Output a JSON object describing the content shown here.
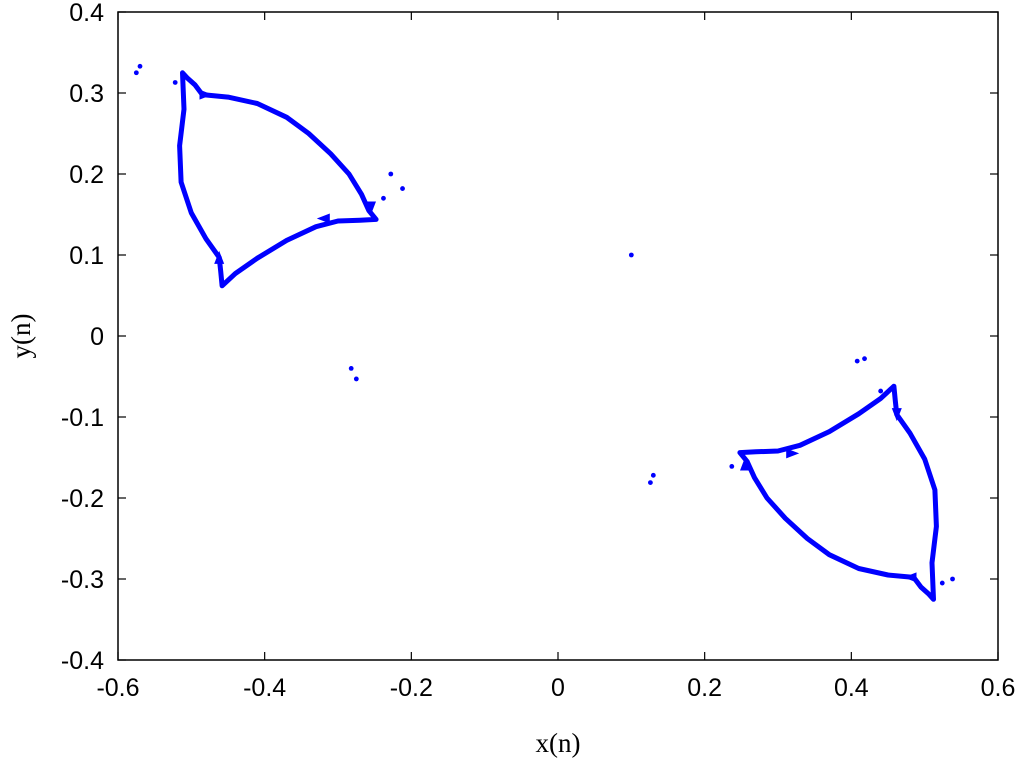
{
  "chart_data": {
    "type": "scatter",
    "xlabel": "x(n)",
    "ylabel": "y(n)",
    "xlim": [
      -0.6,
      0.6
    ],
    "ylim": [
      -0.4,
      0.4
    ],
    "x_ticks": [
      -0.6,
      -0.4,
      -0.2,
      0,
      0.2,
      0.4,
      0.6
    ],
    "y_ticks": [
      -0.4,
      -0.3,
      -0.2,
      -0.1,
      0,
      0.1,
      0.2,
      0.3,
      0.4
    ],
    "x_tick_labels": [
      "-0.6",
      "-0.4",
      "-0.2",
      "0",
      "0.2",
      "0.4",
      "0.6"
    ],
    "y_tick_labels": [
      "-0.4",
      "-0.3",
      "-0.2",
      "-0.1",
      "0",
      "0.1",
      "0.2",
      "0.3",
      "0.4"
    ],
    "grid": false,
    "series_color": "#0000ff",
    "attractor_upper_left": [
      [
        -0.512,
        0.325
      ],
      [
        -0.505,
        0.318
      ],
      [
        -0.495,
        0.31
      ],
      [
        -0.485,
        0.298
      ],
      [
        -0.45,
        0.295
      ],
      [
        -0.41,
        0.287
      ],
      [
        -0.37,
        0.27
      ],
      [
        -0.34,
        0.25
      ],
      [
        -0.31,
        0.225
      ],
      [
        -0.285,
        0.2
      ],
      [
        -0.268,
        0.175
      ],
      [
        -0.258,
        0.155
      ],
      [
        -0.248,
        0.144
      ],
      [
        -0.27,
        0.143
      ],
      [
        -0.3,
        0.142
      ],
      [
        -0.33,
        0.135
      ],
      [
        -0.37,
        0.118
      ],
      [
        -0.41,
        0.096
      ],
      [
        -0.44,
        0.077
      ],
      [
        -0.458,
        0.062
      ],
      [
        -0.46,
        0.08
      ],
      [
        -0.462,
        0.097
      ],
      [
        -0.48,
        0.12
      ],
      [
        -0.5,
        0.152
      ],
      [
        -0.514,
        0.19
      ],
      [
        -0.516,
        0.235
      ],
      [
        -0.51,
        0.28
      ],
      [
        -0.512,
        0.325
      ]
    ],
    "attractor_lower_right": [
      [
        0.512,
        -0.325
      ],
      [
        0.505,
        -0.318
      ],
      [
        0.495,
        -0.31
      ],
      [
        0.485,
        -0.298
      ],
      [
        0.45,
        -0.295
      ],
      [
        0.41,
        -0.287
      ],
      [
        0.37,
        -0.27
      ],
      [
        0.34,
        -0.25
      ],
      [
        0.31,
        -0.225
      ],
      [
        0.285,
        -0.2
      ],
      [
        0.268,
        -0.175
      ],
      [
        0.258,
        -0.155
      ],
      [
        0.248,
        -0.144
      ],
      [
        0.27,
        -0.143
      ],
      [
        0.3,
        -0.142
      ],
      [
        0.33,
        -0.135
      ],
      [
        0.37,
        -0.118
      ],
      [
        0.41,
        -0.096
      ],
      [
        0.44,
        -0.077
      ],
      [
        0.458,
        -0.062
      ],
      [
        0.46,
        -0.08
      ],
      [
        0.462,
        -0.097
      ],
      [
        0.48,
        -0.12
      ],
      [
        0.5,
        -0.152
      ],
      [
        0.514,
        -0.19
      ],
      [
        0.516,
        -0.235
      ],
      [
        0.51,
        -0.28
      ],
      [
        0.512,
        -0.325
      ]
    ],
    "scattered_points": [
      [
        -0.575,
        0.325
      ],
      [
        -0.57,
        0.333
      ],
      [
        -0.522,
        0.313
      ],
      [
        -0.238,
        0.17
      ],
      [
        -0.228,
        0.2
      ],
      [
        -0.212,
        0.182
      ],
      [
        -0.282,
        -0.04
      ],
      [
        -0.275,
        -0.053
      ],
      [
        0.1,
        0.1
      ],
      [
        0.13,
        -0.172
      ],
      [
        0.126,
        -0.181
      ],
      [
        0.237,
        -0.161
      ],
      [
        0.408,
        -0.031
      ],
      [
        0.418,
        -0.028
      ],
      [
        0.44,
        -0.068
      ],
      [
        0.524,
        -0.305
      ],
      [
        0.538,
        -0.3
      ]
    ],
    "arrowheads": [
      [
        -0.48,
        0.298,
        1,
        0
      ],
      [
        -0.255,
        0.158,
        0,
        -1
      ],
      [
        -0.32,
        0.145,
        -1,
        0
      ],
      [
        -0.462,
        0.097,
        0,
        1
      ],
      [
        0.48,
        -0.298,
        -1,
        0
      ],
      [
        0.255,
        -0.158,
        0,
        1
      ],
      [
        0.32,
        -0.145,
        1,
        0
      ],
      [
        0.462,
        -0.097,
        0,
        -1
      ]
    ]
  }
}
